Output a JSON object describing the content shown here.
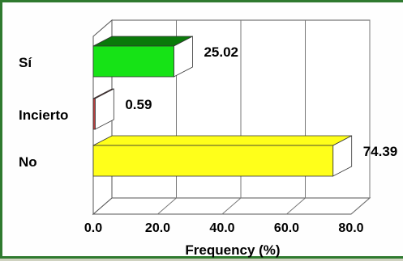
{
  "chart_data": {
    "type": "bar",
    "orientation": "horizontal",
    "style": "3d",
    "categories": [
      "Sí",
      "Incierto",
      "No"
    ],
    "values": [
      25.02,
      0.59,
      74.39
    ],
    "data_labels": [
      "25.02",
      "0.59",
      "74.39"
    ],
    "colors": [
      "#16e316",
      "#c04040",
      "#ffff1a"
    ],
    "top_colors": [
      "#0a7a0a",
      "#8a2020",
      "#ffff1a"
    ],
    "xlabel": "Frequency (%)",
    "ylabel": "",
    "title": "",
    "xlim": [
      0,
      80
    ],
    "xticks": [
      "0.0",
      "20.0",
      "40.0",
      "60.0",
      "80.0"
    ],
    "grid": true,
    "legend": "none"
  }
}
